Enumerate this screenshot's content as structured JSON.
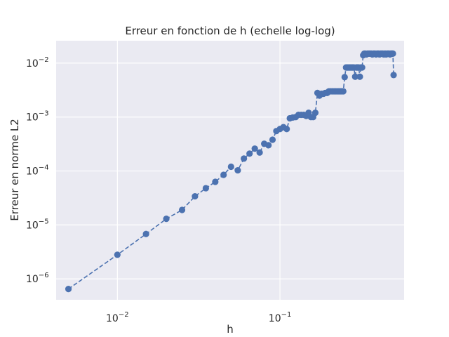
{
  "chart_data": {
    "type": "line",
    "title": "Erreur en fonction de h (echelle log-log)",
    "xlabel": "h",
    "ylabel": "Erreur en norme L2",
    "xscale": "log",
    "yscale": "log",
    "xlim": [
      0.0042,
      0.58
    ],
    "ylim": [
      4.1e-07,
      0.026
    ],
    "grid": true,
    "line_style": "dashed",
    "marker": "circle",
    "colors": {
      "background": "#eaeaf2",
      "grid": "#ffffff",
      "series": "#4c72b0",
      "text": "#262626"
    },
    "x_ticks": [
      {
        "value": 0.01,
        "base": "10",
        "exp": "−2"
      },
      {
        "value": 0.1,
        "base": "10",
        "exp": "−1"
      }
    ],
    "y_ticks": [
      {
        "value": 1e-06,
        "base": "10",
        "exp": "−6"
      },
      {
        "value": 1e-05,
        "base": "10",
        "exp": "−5"
      },
      {
        "value": 0.0001,
        "base": "10",
        "exp": "−4"
      },
      {
        "value": 0.001,
        "base": "10",
        "exp": "−3"
      },
      {
        "value": 0.01,
        "base": "10",
        "exp": "−2"
      }
    ],
    "series": [
      {
        "x": [
          0.005,
          0.01,
          0.015,
          0.02,
          0.025,
          0.03,
          0.035,
          0.04,
          0.045,
          0.05,
          0.055,
          0.06,
          0.065,
          0.07,
          0.075,
          0.08,
          0.085,
          0.09,
          0.095,
          0.1,
          0.105,
          0.11,
          0.115,
          0.12,
          0.125,
          0.13,
          0.135,
          0.14,
          0.145,
          0.15,
          0.155,
          0.16,
          0.165,
          0.17,
          0.175,
          0.18,
          0.185,
          0.19,
          0.195,
          0.2,
          0.205,
          0.21,
          0.215,
          0.22,
          0.225,
          0.23,
          0.235,
          0.24,
          0.245,
          0.25,
          0.255,
          0.26,
          0.265,
          0.27,
          0.275,
          0.28,
          0.285,
          0.29,
          0.295,
          0.3,
          0.305,
          0.31,
          0.315,
          0.32,
          0.325,
          0.33,
          0.335,
          0.34,
          0.345,
          0.35,
          0.355,
          0.36,
          0.365,
          0.37,
          0.375,
          0.38,
          0.385,
          0.39,
          0.395,
          0.4,
          0.405,
          0.41,
          0.415,
          0.42,
          0.425,
          0.43,
          0.435,
          0.44,
          0.445,
          0.45,
          0.455,
          0.46,
          0.465,
          0.47,
          0.475,
          0.48,
          0.485,
          0.49,
          0.495,
          0.5
        ],
        "y": [
          6.5e-07,
          2.8e-06,
          6.8e-06,
          1.3e-05,
          1.9e-05,
          3.4e-05,
          4.8e-05,
          6.3e-05,
          8.5e-05,
          0.00012,
          0.000103,
          0.00017,
          0.00021,
          0.00026,
          0.00022,
          0.00032,
          0.0003,
          0.00038,
          0.00055,
          0.0006,
          0.00065,
          0.0006,
          0.00095,
          0.00098,
          0.001,
          0.0011,
          0.0011,
          0.0011,
          0.00105,
          0.0012,
          0.001,
          0.001,
          0.0012,
          0.0028,
          0.0025,
          0.0027,
          0.0027,
          0.0028,
          0.0028,
          0.003,
          0.003,
          0.003,
          0.003,
          0.003,
          0.003,
          0.003,
          0.003,
          0.003,
          0.003,
          0.0055,
          0.0083,
          0.0083,
          0.0083,
          0.0083,
          0.0083,
          0.0083,
          0.0083,
          0.0056,
          0.0083,
          0.0083,
          0.0083,
          0.0056,
          0.0083,
          0.0083,
          0.014,
          0.015,
          0.015,
          0.0145,
          0.015,
          0.015,
          0.015,
          0.015,
          0.015,
          0.0145,
          0.015,
          0.015,
          0.015,
          0.0145,
          0.015,
          0.015,
          0.015,
          0.0145,
          0.015,
          0.015,
          0.015,
          0.015,
          0.0145,
          0.015,
          0.015,
          0.0145,
          0.015,
          0.015,
          0.015,
          0.015,
          0.0145,
          0.015,
          0.015,
          0.015,
          0.015,
          0.006
        ]
      }
    ]
  }
}
